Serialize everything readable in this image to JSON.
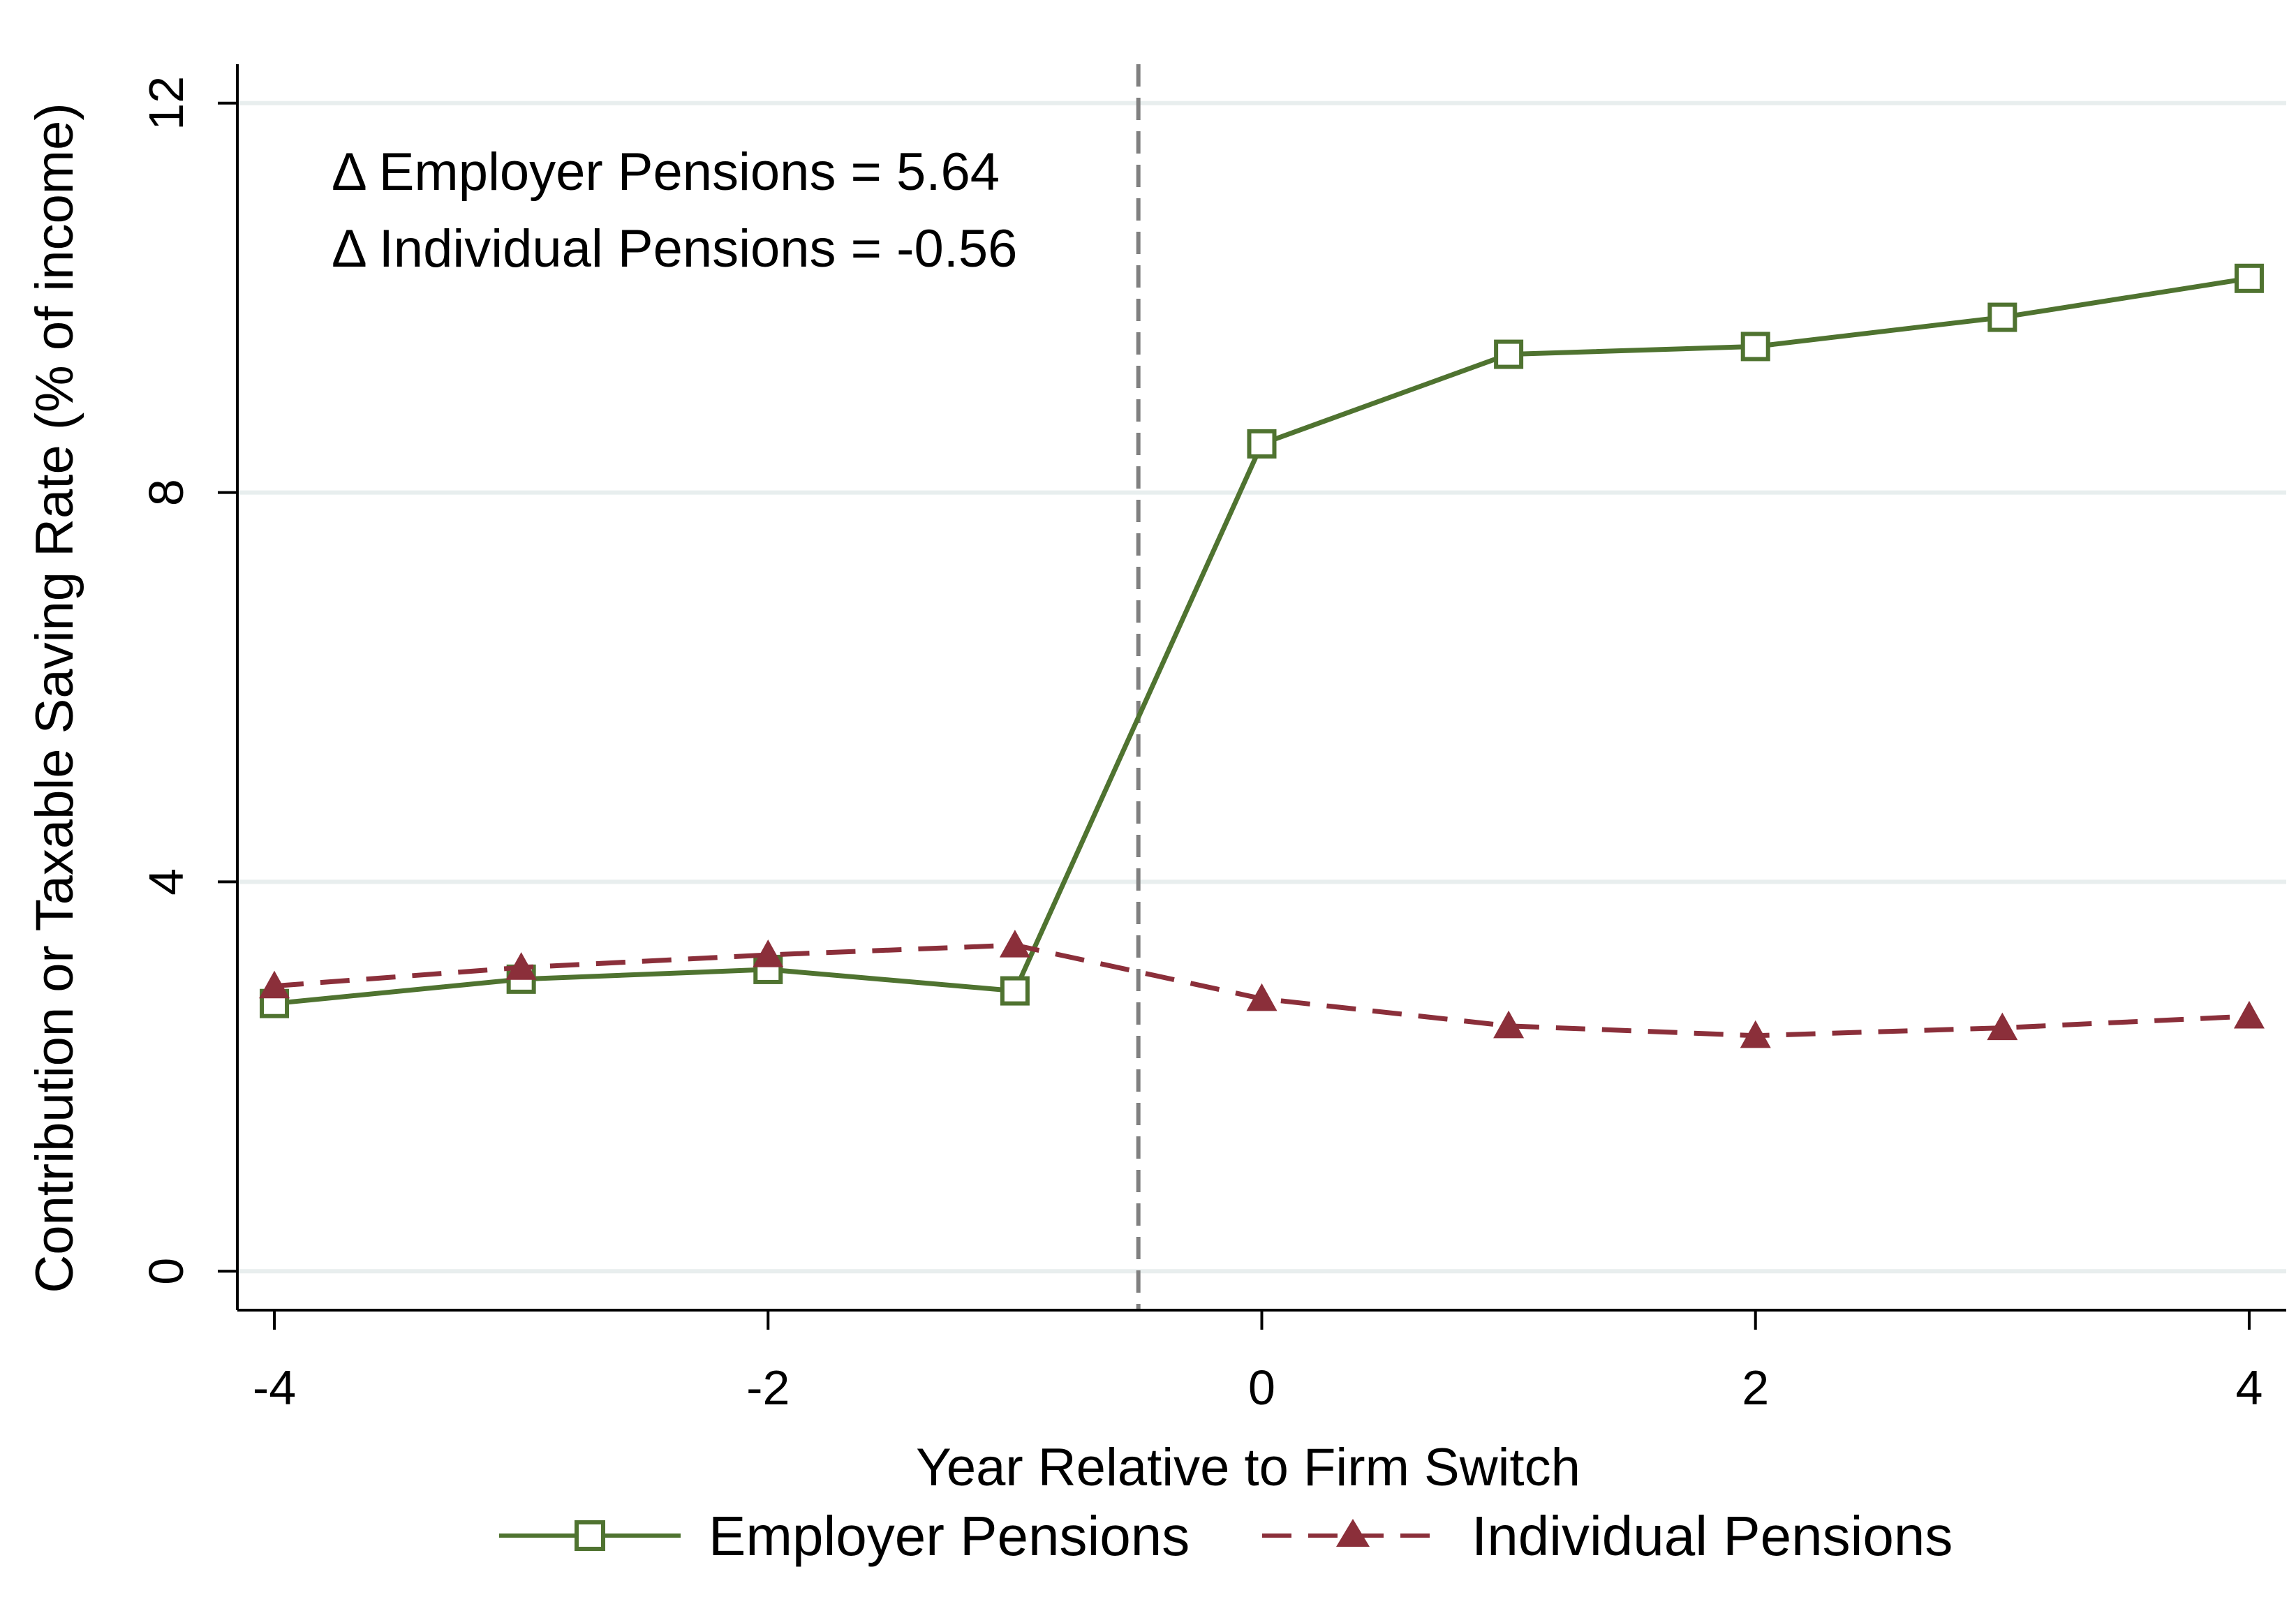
{
  "chart_data": {
    "type": "line",
    "xlabel": "Year Relative to Firm Switch",
    "ylabel": "Contribution or Taxable Saving Rate (% of income)",
    "x": [
      -4,
      -3,
      -2,
      -1,
      0,
      1,
      2,
      3,
      4
    ],
    "xlim": [
      -4.15,
      4.15
    ],
    "ylim": [
      -0.4,
      12.4
    ],
    "xticks": [
      -4,
      -2,
      0,
      2,
      4
    ],
    "yticks": [
      0,
      4,
      8,
      12
    ],
    "grid": "horizontal",
    "event_line_x": -0.5,
    "series": [
      {
        "name": "Employer Pensions",
        "values": [
          2.75,
          3.0,
          3.1,
          2.88,
          8.5,
          9.42,
          9.5,
          9.8,
          10.2
        ],
        "color": "#4f7330",
        "marker": "hollow-square",
        "line_style": "solid"
      },
      {
        "name": "Individual Pensions",
        "values": [
          2.93,
          3.12,
          3.25,
          3.35,
          2.8,
          2.52,
          2.42,
          2.5,
          2.62
        ],
        "color": "#8b2f3a",
        "marker": "triangle",
        "line_style": "dashed"
      }
    ],
    "annotations": [
      "Δ Employer Pensions = 5.64",
      "Δ Individual Pensions = -0.56"
    ],
    "legend_position": "bottom"
  },
  "colors": {
    "grid": "#e8eeee",
    "axis": "#000000",
    "event_line": "#808080"
  }
}
